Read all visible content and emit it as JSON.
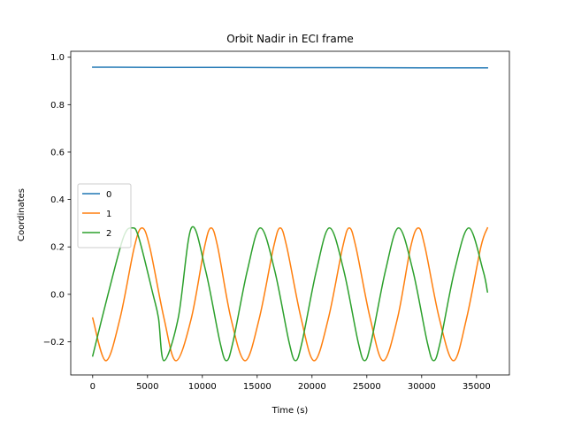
{
  "chart_data": {
    "type": "line",
    "title": "Orbit Nadir in ECI frame",
    "xlabel": "Time (s)",
    "ylabel": "Coordinates",
    "xlim": [
      -2000,
      38000
    ],
    "ylim": [
      -0.34,
      1.025
    ],
    "xticks": [
      0,
      5000,
      10000,
      15000,
      20000,
      25000,
      30000,
      35000
    ],
    "yticks": [
      -0.2,
      0.0,
      0.2,
      0.4,
      0.6,
      0.8,
      1.0
    ],
    "xtick_labels": [
      "0",
      "5000",
      "10000",
      "15000",
      "20000",
      "25000",
      "30000",
      "35000"
    ],
    "ytick_labels": [
      "−0.2",
      "0.0",
      "0.2",
      "0.4",
      "0.6",
      "0.8",
      "1.0"
    ],
    "legend_position": "center-left",
    "grid": false,
    "series": [
      {
        "name": "0",
        "color": "#1f77b4",
        "x": [
          0,
          6000,
          12000,
          18000,
          24000,
          30000,
          36000
        ],
        "y": [
          0.958,
          0.957,
          0.957,
          0.956,
          0.956,
          0.955,
          0.955
        ]
      },
      {
        "name": "1",
        "color": "#ff7f0e",
        "x": [
          0,
          1200,
          2500,
          3800,
          4500,
          5200,
          6500,
          7600,
          9000,
          10200,
          10800,
          11400,
          12600,
          13900,
          15200,
          16500,
          17100,
          17700,
          19000,
          20200,
          21500,
          22800,
          23400,
          24000,
          25300,
          26500,
          27800,
          29000,
          29700,
          30300,
          31600,
          32900,
          34100,
          35400,
          36000
        ],
        "y": [
          -0.1,
          -0.28,
          -0.1,
          0.2,
          0.28,
          0.2,
          -0.1,
          -0.28,
          -0.1,
          0.2,
          0.28,
          0.2,
          -0.1,
          -0.28,
          -0.1,
          0.2,
          0.28,
          0.2,
          -0.1,
          -0.28,
          -0.1,
          0.2,
          0.28,
          0.2,
          -0.1,
          -0.28,
          -0.1,
          0.2,
          0.28,
          0.2,
          -0.1,
          -0.28,
          -0.1,
          0.2,
          0.28
        ]
      },
      {
        "name": "2",
        "color": "#2ca02c",
        "x": [
          0,
          1400,
          2800,
          3600,
          4200,
          5500,
          6000,
          6500,
          7800,
          9000,
          10300,
          11600,
          12200,
          12800,
          14100,
          15300,
          16600,
          17900,
          18500,
          19100,
          20400,
          21600,
          22900,
          24200,
          24800,
          25400,
          26700,
          27900,
          29200,
          30500,
          31100,
          31700,
          33000,
          34300,
          35600,
          36000
        ],
        "y": [
          -0.26,
          0.0,
          0.24,
          0.28,
          0.24,
          0.0,
          -0.1,
          -0.28,
          -0.1,
          0.28,
          0.1,
          -0.2,
          -0.28,
          -0.2,
          0.1,
          0.28,
          0.1,
          -0.2,
          -0.28,
          -0.2,
          0.1,
          0.28,
          0.1,
          -0.2,
          -0.28,
          -0.2,
          0.1,
          0.28,
          0.1,
          -0.2,
          -0.28,
          -0.2,
          0.1,
          0.28,
          0.1,
          0.01
        ]
      }
    ]
  }
}
